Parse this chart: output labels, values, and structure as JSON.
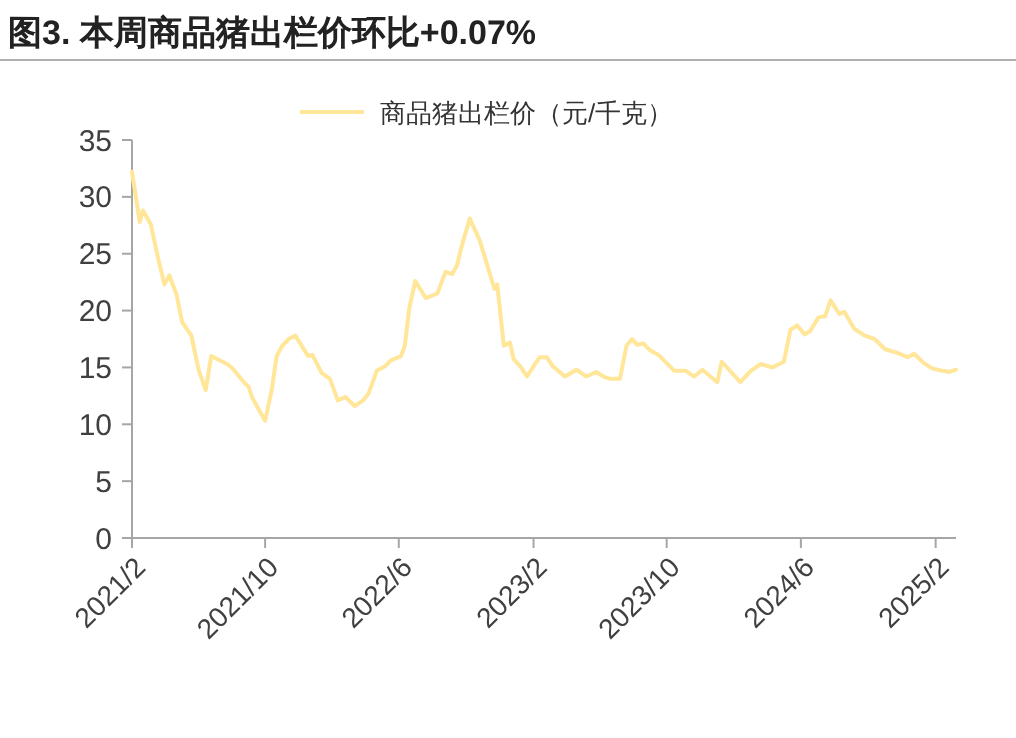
{
  "chart_data": {
    "type": "line",
    "title": "图3. 本周商品猪出栏价环比+0.07%",
    "legend": "top",
    "xlim": [
      "2021-02-01",
      "2025-03-10"
    ],
    "xticks": [
      {
        "value": "2021-02-01",
        "label": "2021/2"
      },
      {
        "value": "2021-10-01",
        "label": "2021/10"
      },
      {
        "value": "2022-06-01",
        "label": "2022/6"
      },
      {
        "value": "2023-02-01",
        "label": "2023/2"
      },
      {
        "value": "2023-10-01",
        "label": "2023/10"
      },
      {
        "value": "2024-06-01",
        "label": "2024/6"
      },
      {
        "value": "2025-02-01",
        "label": "2025/2"
      }
    ],
    "ylim": [
      0,
      35
    ],
    "yticks": [
      0,
      5,
      10,
      15,
      20,
      25,
      30,
      35
    ],
    "series": [
      {
        "name": "商品猪出栏价（元/千克）",
        "color": "#ffe699",
        "x": [
          "2021-02-01",
          "2021-02-15",
          "2021-02-21",
          "2021-03-07",
          "2021-03-20",
          "2021-04-01",
          "2021-04-10",
          "2021-04-23",
          "2021-05-03",
          "2021-05-20",
          "2021-06-02",
          "2021-06-15",
          "2021-06-25",
          "2021-07-24",
          "2021-08-03",
          "2021-08-25",
          "2021-09-01",
          "2021-09-07",
          "2021-10-01",
          "2021-10-13",
          "2021-10-22",
          "2021-11-01",
          "2021-11-13",
          "2021-11-25",
          "2021-12-18",
          "2021-12-26",
          "2022-01-12",
          "2022-01-27",
          "2022-02-10",
          "2022-02-24",
          "2022-03-13",
          "2022-03-28",
          "2022-04-07",
          "2022-04-22",
          "2022-05-07",
          "2022-05-17",
          "2022-06-05",
          "2022-06-12",
          "2022-06-20",
          "2022-07-01",
          "2022-07-20",
          "2022-08-10",
          "2022-08-25",
          "2022-09-06",
          "2022-09-15",
          "2022-09-23",
          "2022-10-08",
          "2022-10-26",
          "2022-11-22",
          "2022-11-27",
          "2022-12-09",
          "2022-12-20",
          "2022-12-27",
          "2023-01-08",
          "2023-01-20",
          "2023-02-12",
          "2023-02-25",
          "2023-03-08",
          "2023-03-30",
          "2023-04-20",
          "2023-05-08",
          "2023-05-26",
          "2023-06-08",
          "2023-06-20",
          "2023-07-08",
          "2023-07-20",
          "2023-07-30",
          "2023-08-08",
          "2023-08-20",
          "2023-09-01",
          "2023-09-16",
          "2023-10-15",
          "2023-11-05",
          "2023-11-20",
          "2023-12-05",
          "2024-01-01",
          "2024-01-09",
          "2024-02-12",
          "2024-03-02",
          "2024-03-20",
          "2024-04-10",
          "2024-05-01",
          "2024-05-13",
          "2024-05-25",
          "2024-06-08",
          "2024-06-18",
          "2024-07-03",
          "2024-07-15",
          "2024-07-25",
          "2024-08-10",
          "2024-08-19",
          "2024-09-06",
          "2024-09-25",
          "2024-10-13",
          "2024-11-01",
          "2024-11-22",
          "2024-12-12",
          "2024-12-24",
          "2025-01-10",
          "2025-01-26",
          "2025-02-14",
          "2025-02-26",
          "2025-03-10"
        ],
        "values": [
          32.2,
          27.8,
          28.8,
          27.6,
          24.7,
          22.3,
          23.1,
          21.4,
          19.0,
          17.8,
          14.8,
          13.0,
          16.0,
          15.3,
          14.9,
          13.6,
          13.3,
          12.4,
          10.3,
          13.0,
          16.0,
          16.9,
          17.5,
          17.8,
          16.0,
          16.1,
          14.5,
          14.0,
          12.1,
          12.4,
          11.6,
          12.1,
          12.7,
          14.7,
          15.1,
          15.6,
          16.0,
          16.9,
          20.2,
          22.6,
          21.1,
          21.5,
          23.4,
          23.2,
          24.0,
          25.6,
          28.1,
          26.2,
          21.9,
          22.3,
          16.9,
          17.2,
          15.7,
          15.1,
          14.2,
          15.9,
          15.9,
          15.1,
          14.2,
          14.8,
          14.2,
          14.6,
          14.2,
          14.0,
          14.0,
          16.9,
          17.5,
          17.0,
          17.1,
          16.5,
          16.1,
          14.7,
          14.7,
          14.2,
          14.8,
          13.7,
          15.5,
          13.7,
          14.7,
          15.3,
          15.0,
          15.5,
          18.3,
          18.7,
          17.9,
          18.2,
          19.4,
          19.5,
          20.9,
          19.7,
          19.9,
          18.4,
          17.8,
          17.5,
          16.6,
          16.3,
          15.9,
          16.2,
          15.4,
          14.9,
          14.7,
          14.6,
          14.8
        ]
      }
    ]
  }
}
